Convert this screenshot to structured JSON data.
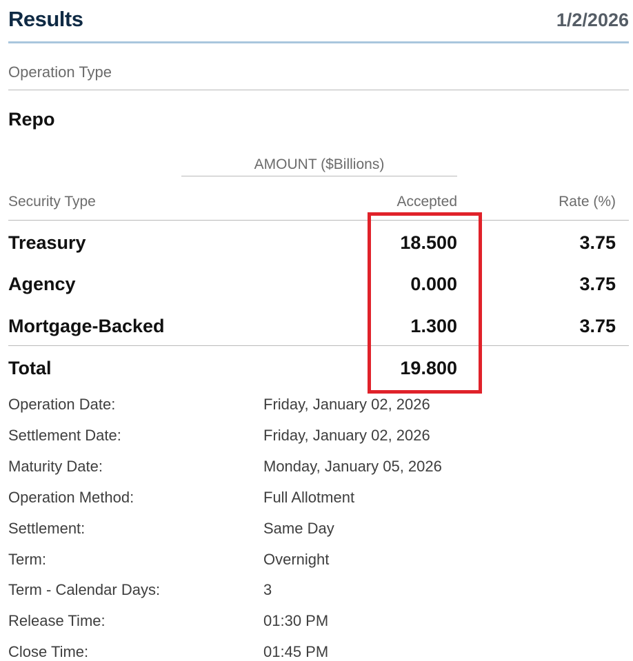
{
  "header": {
    "title": "Results",
    "date": "1/2/2026"
  },
  "operation_type": {
    "label": "Operation Type",
    "value": "Repo"
  },
  "table": {
    "amount_header": "AMOUNT ($Billions)",
    "columns": {
      "security_type": "Security Type",
      "accepted": "Accepted",
      "rate": "Rate (%)"
    },
    "rows": [
      {
        "security_type": "Treasury",
        "accepted": "18.500",
        "rate": "3.75"
      },
      {
        "security_type": "Agency",
        "accepted": "0.000",
        "rate": "3.75"
      },
      {
        "security_type": "Mortgage-Backed",
        "accepted": "1.300",
        "rate": "3.75"
      }
    ],
    "total": {
      "label": "Total",
      "accepted": "19.800"
    },
    "highlight_color": "#e0222a"
  },
  "details": [
    {
      "label": "Operation Date:",
      "value": "Friday, January 02, 2026"
    },
    {
      "label": "Settlement Date:",
      "value": "Friday, January 02, 2026"
    },
    {
      "label": "Maturity Date:",
      "value": "Monday, January 05, 2026"
    },
    {
      "label": "Operation Method:",
      "value": "Full Allotment"
    },
    {
      "label": "Settlement:",
      "value": "Same Day"
    },
    {
      "label": "Term:",
      "value": "Overnight"
    },
    {
      "label": "Term - Calendar Days:",
      "value": "3"
    },
    {
      "label": "Release Time:",
      "value": "01:30 PM"
    },
    {
      "label": "Close Time:",
      "value": "01:45 PM"
    }
  ]
}
